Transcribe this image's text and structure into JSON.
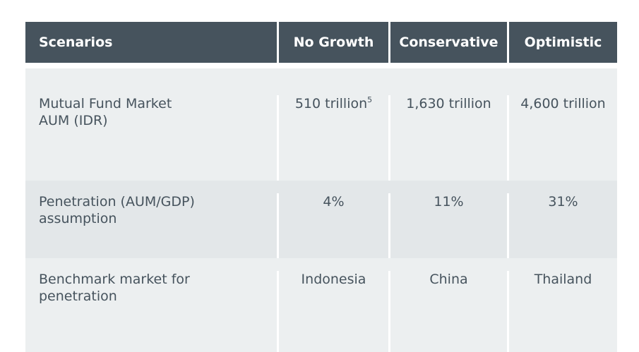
{
  "headers": [
    "Scenarios",
    "No Growth",
    "Conservative",
    "Optimistic"
  ],
  "rows": [
    {
      "label_line1": "Mutual Fund Market",
      "label_line2": "AUM (IDR)",
      "no_growth": "510 trillion",
      "no_growth_footnote": "5",
      "conservative": "1,630 trillion",
      "optimistic": "4,600 trillion"
    },
    {
      "label_line1": "Penetration (AUM/GDP)",
      "label_line2": "assumption",
      "no_growth": "4%",
      "conservative": "11%",
      "optimistic": "31%"
    },
    {
      "label_line1": "Benchmark market for",
      "label_line2": "penetration",
      "no_growth": "Indonesia",
      "conservative": "China",
      "optimistic": "Thailand"
    }
  ],
  "colors": {
    "header_bg": "#46535d",
    "row_light": "#eceff0",
    "row_dark": "#e3e7e9",
    "text": "#46535d"
  }
}
